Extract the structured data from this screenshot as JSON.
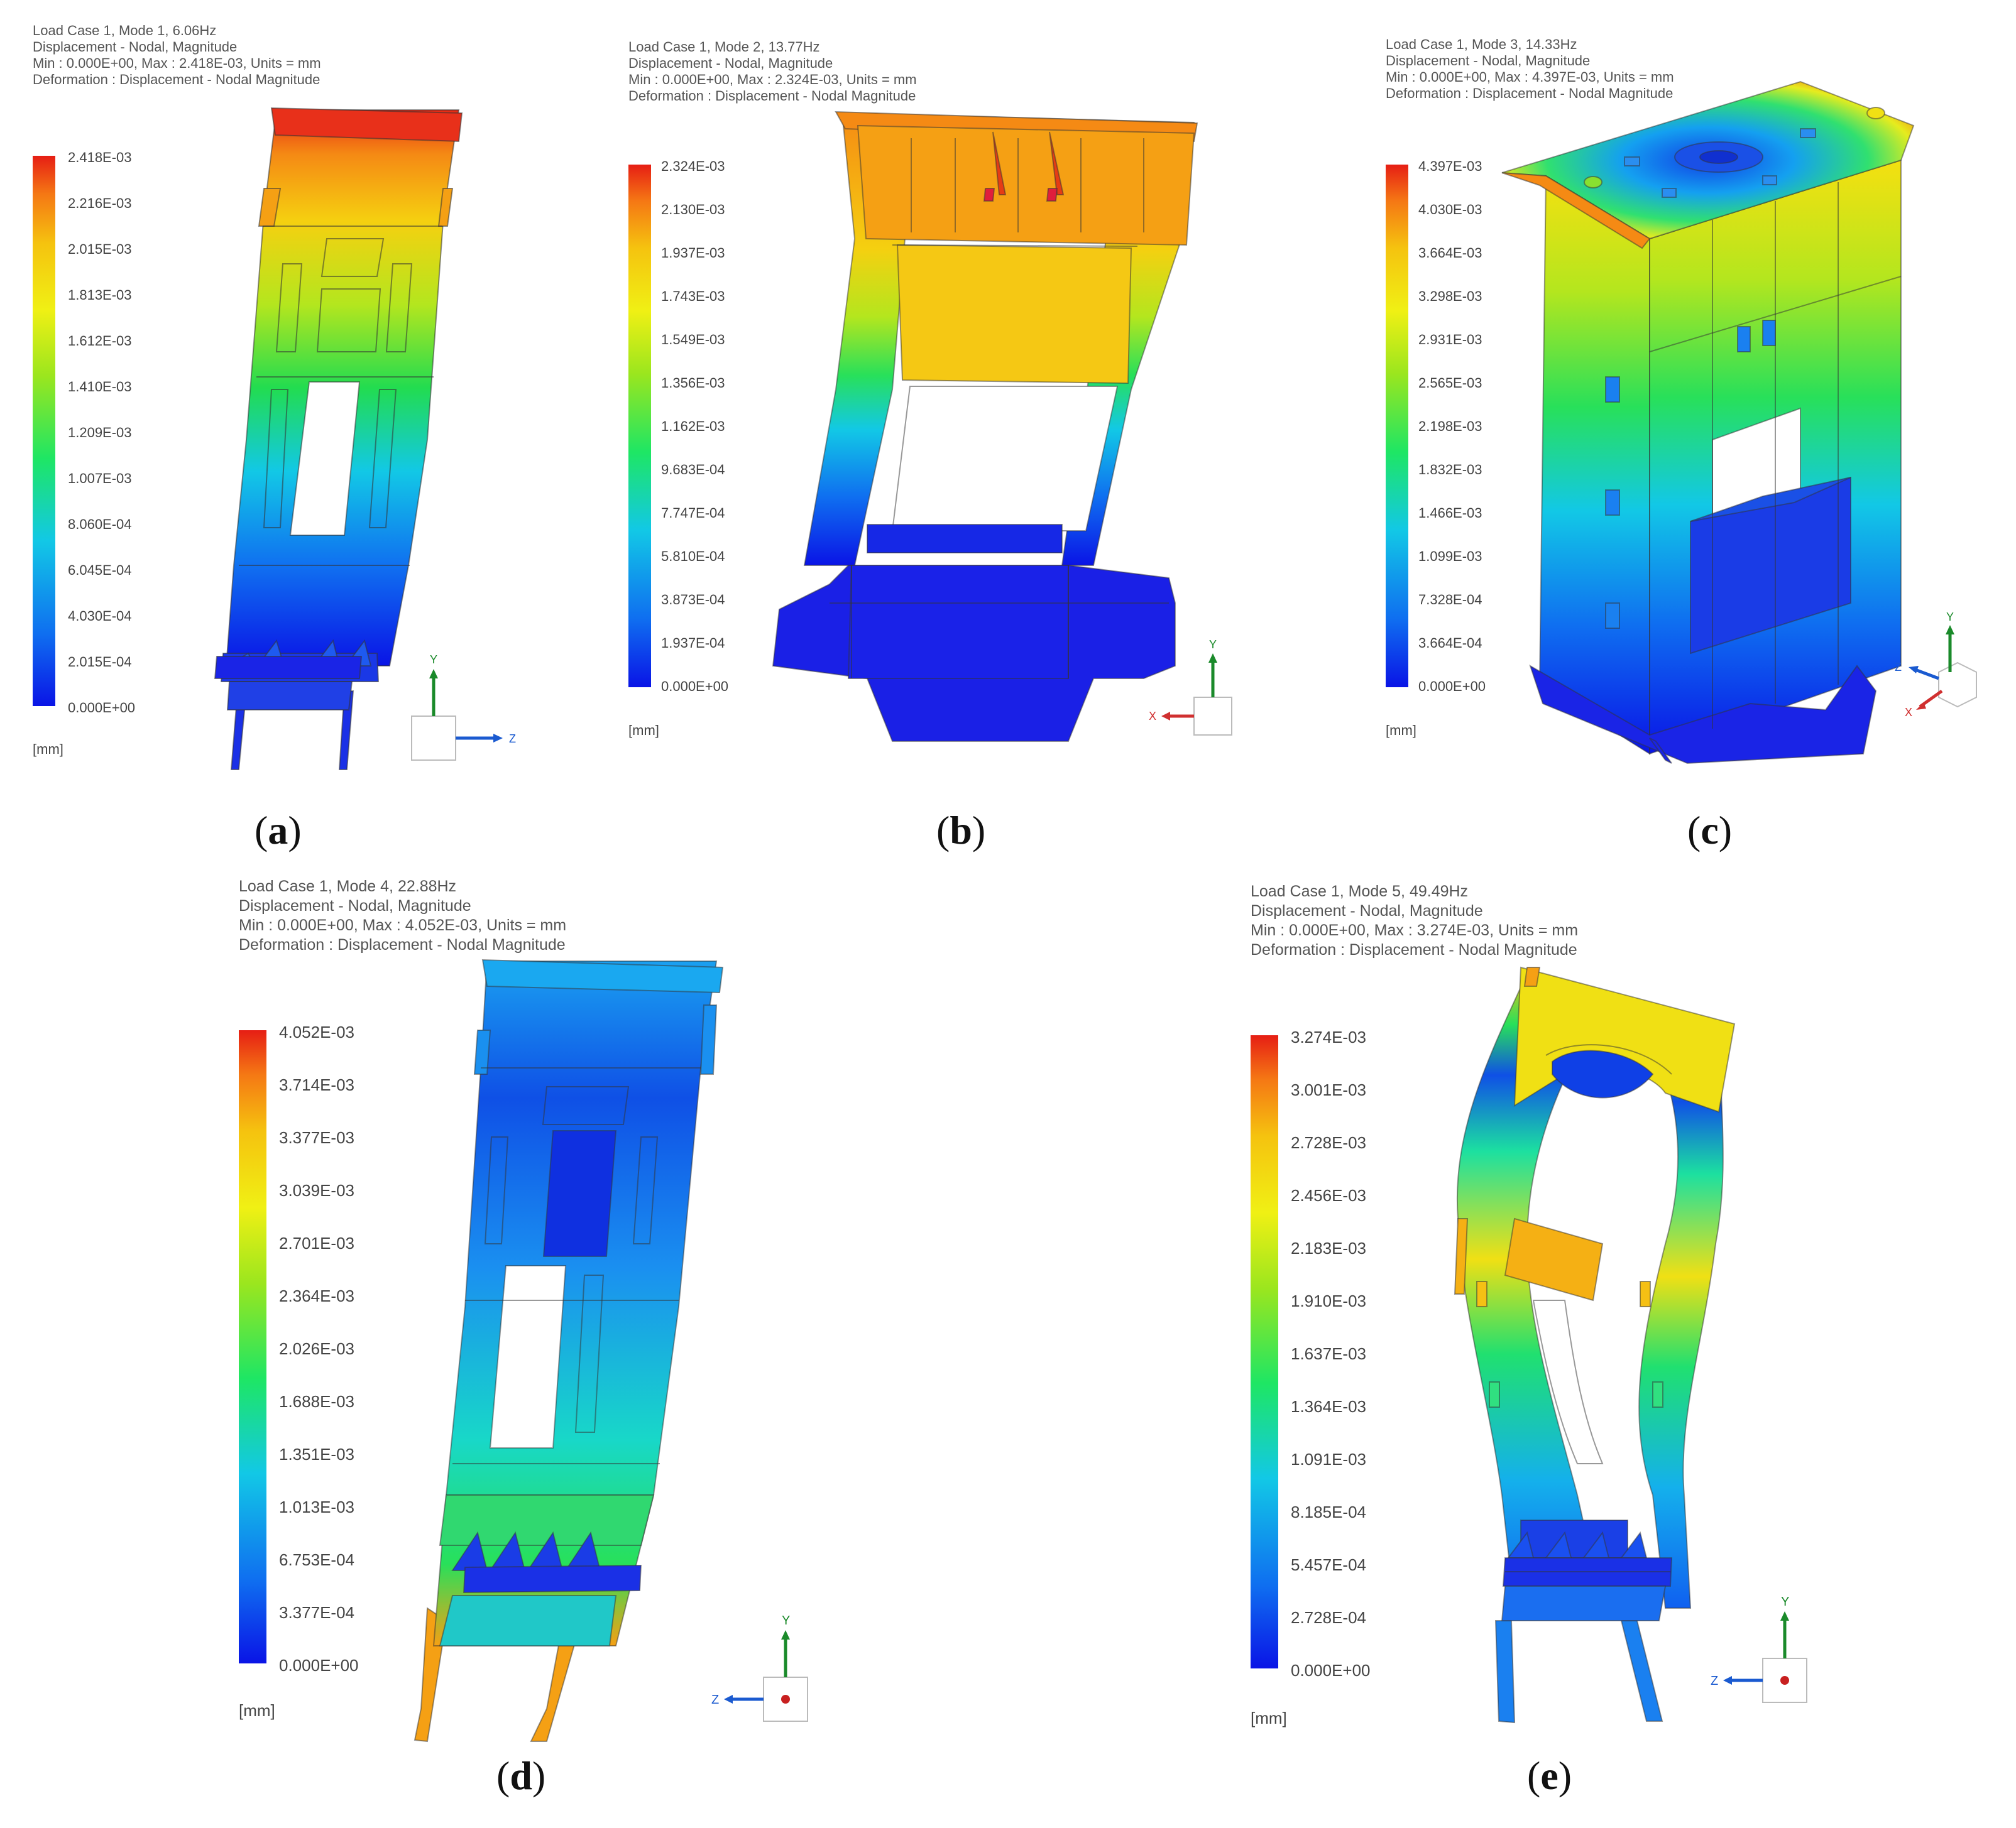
{
  "colormap": [
    "#0a14e6",
    "#0f6ef0",
    "#12c8e6",
    "#1ee664",
    "#9be61e",
    "#f0f014",
    "#f5c30f",
    "#f57814",
    "#e61e14"
  ],
  "panels": [
    {
      "id": "a",
      "caption": "a",
      "header": [
        "Load Case 1, Mode 1, 6.06Hz",
        "Displacement - Nodal, Magnitude",
        "Min : 0.000E+00, Max : 2.418E-03, Units = mm",
        "Deformation : Displacement - Nodal Magnitude"
      ],
      "ticks": [
        "2.418E-03",
        "2.216E-03",
        "2.015E-03",
        "1.813E-03",
        "1.612E-03",
        "1.410E-03",
        "1.209E-03",
        "1.007E-03",
        "8.060E-04",
        "6.045E-04",
        "4.030E-04",
        "2.015E-04",
        "0.000E+00"
      ],
      "unit": "[mm]",
      "axes": {
        "vertical": "Y",
        "horizontal": "Z"
      }
    },
    {
      "id": "b",
      "caption": "b",
      "header": [
        "Load Case 1, Mode 2, 13.77Hz",
        "Displacement - Nodal, Magnitude",
        "Min : 0.000E+00, Max : 2.324E-03, Units = mm",
        "Deformation : Displacement - Nodal Magnitude"
      ],
      "ticks": [
        "2.324E-03",
        "2.130E-03",
        "1.937E-03",
        "1.743E-03",
        "1.549E-03",
        "1.356E-03",
        "1.162E-03",
        "9.683E-04",
        "7.747E-04",
        "5.810E-04",
        "3.873E-04",
        "1.937E-04",
        "0.000E+00"
      ],
      "unit": "[mm]",
      "axes": {
        "vertical": "Y",
        "horizontal": "X"
      }
    },
    {
      "id": "c",
      "caption": "c",
      "header": [
        "Load Case 1, Mode 3, 14.33Hz",
        "Displacement - Nodal, Magnitude",
        "Min : 0.000E+00, Max : 4.397E-03, Units = mm",
        "Deformation : Displacement - Nodal Magnitude"
      ],
      "ticks": [
        "4.397E-03",
        "4.030E-03",
        "3.664E-03",
        "3.298E-03",
        "2.931E-03",
        "2.565E-03",
        "2.198E-03",
        "1.832E-03",
        "1.466E-03",
        "1.099E-03",
        "7.328E-04",
        "3.664E-04",
        "0.000E+00"
      ],
      "unit": "[mm]",
      "axes": {
        "vertical": "Y",
        "horizontal": "Z",
        "third": "X"
      }
    },
    {
      "id": "d",
      "caption": "d",
      "header": [
        "Load Case 1, Mode 4, 22.88Hz",
        "Displacement - Nodal, Magnitude",
        "Min : 0.000E+00, Max : 4.052E-03, Units = mm",
        "Deformation : Displacement - Nodal Magnitude"
      ],
      "ticks": [
        "4.052E-03",
        "3.714E-03",
        "3.377E-03",
        "3.039E-03",
        "2.701E-03",
        "2.364E-03",
        "2.026E-03",
        "1.688E-03",
        "1.351E-03",
        "1.013E-03",
        "6.753E-04",
        "3.377E-04",
        "0.000E+00"
      ],
      "unit": "[mm]",
      "axes": {
        "vertical": "Y",
        "horizontal": "Z"
      }
    },
    {
      "id": "e",
      "caption": "e",
      "header": [
        "Load Case 1, Mode 5, 49.49Hz",
        "Displacement - Nodal, Magnitude",
        "Min : 0.000E+00, Max : 3.274E-03, Units = mm",
        "Deformation : Displacement - Nodal Magnitude"
      ],
      "ticks": [
        "3.274E-03",
        "3.001E-03",
        "2.728E-03",
        "2.456E-03",
        "2.183E-03",
        "1.910E-03",
        "1.637E-03",
        "1.364E-03",
        "1.091E-03",
        "8.185E-04",
        "5.457E-04",
        "2.728E-04",
        "0.000E+00"
      ],
      "unit": "[mm]",
      "axes": {
        "vertical": "Y",
        "horizontal": "Z"
      }
    }
  ]
}
